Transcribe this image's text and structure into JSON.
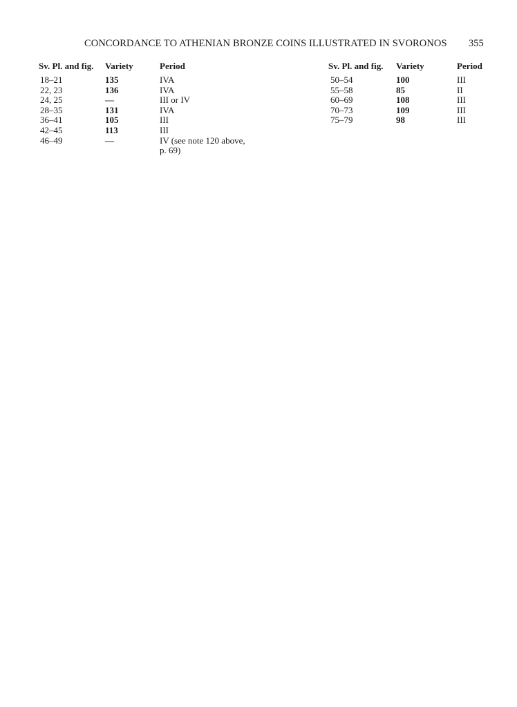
{
  "running_head": "CONCORDANCE TO ATHENIAN BRONZE COINS ILLUSTRATED IN SVORONOS",
  "page_number": "355",
  "columns": [
    "Sv. Pl. and fig.",
    "Variety",
    "Period"
  ],
  "left_table": [
    {
      "fig": "18–21",
      "variety": "135",
      "period": "IVA"
    },
    {
      "fig": "22, 23",
      "variety": "136",
      "period": "IVA"
    },
    {
      "fig": "24, 25",
      "variety": "—",
      "period": "III or IV"
    },
    {
      "fig": "28–35",
      "variety": "131",
      "period": "IVA"
    },
    {
      "fig": "36–41",
      "variety": "105",
      "period": "III"
    },
    {
      "fig": "42–45",
      "variety": "113",
      "period": "III"
    },
    {
      "fig": "46–49",
      "variety": "—",
      "period": "IV (see note 120 above,",
      "period_cont": "p. 69)"
    }
  ],
  "right_table": [
    {
      "fig": "50–54",
      "variety": "100",
      "period": "III"
    },
    {
      "fig": "55–58",
      "variety": "85",
      "period": "II"
    },
    {
      "fig": "60–69",
      "variety": "108",
      "period": "III"
    },
    {
      "fig": "70–73",
      "variety": "109",
      "period": "III"
    },
    {
      "fig": "75–79",
      "variety": "98",
      "period": "III"
    }
  ]
}
